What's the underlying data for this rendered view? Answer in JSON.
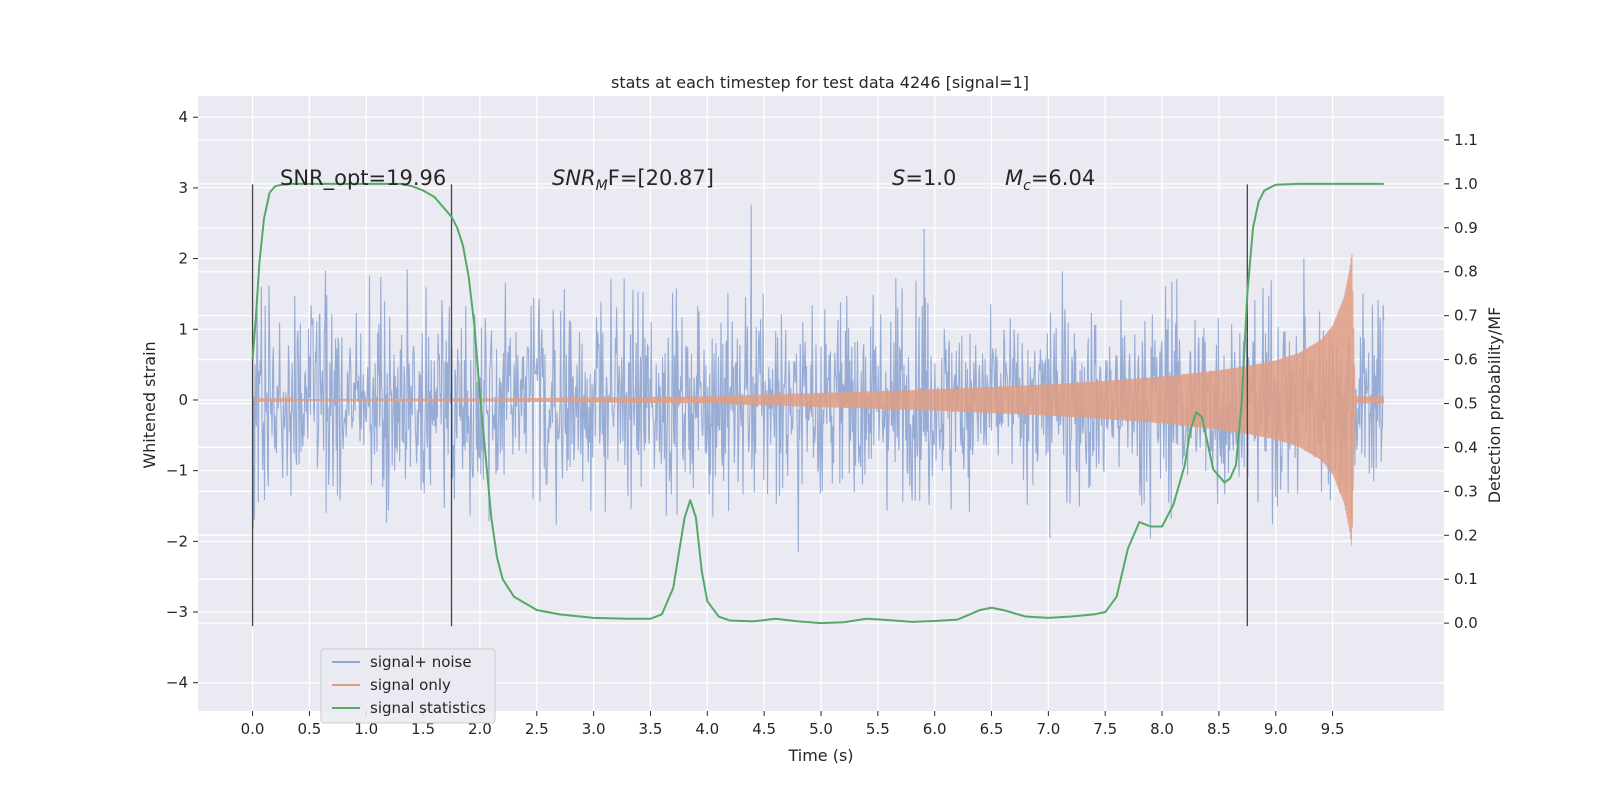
{
  "chart_data": {
    "type": "line",
    "title": "stats at each timestep for test data 4246 [signal=1]",
    "xlabel": "Time (s)",
    "ylabel_left": "Whitened strain",
    "ylabel_right": "Detection probability/MF",
    "xlim": [
      -0.48,
      10.48
    ],
    "ylim_left": [
      -4.4,
      4.3
    ],
    "ylim_right": [
      -0.2,
      1.2
    ],
    "x_ticks": [
      "0.0",
      "0.5",
      "1.0",
      "1.5",
      "2.0",
      "2.5",
      "3.0",
      "3.5",
      "4.0",
      "4.5",
      "5.0",
      "5.5",
      "6.0",
      "6.5",
      "7.0",
      "7.5",
      "8.0",
      "8.5",
      "9.0",
      "9.5"
    ],
    "y_ticks_left": [
      "−4",
      "−3",
      "−2",
      "−1",
      "0",
      "1",
      "2",
      "3",
      "4"
    ],
    "y_ticks_right": [
      "0.0",
      "0.1",
      "0.2",
      "0.3",
      "0.4",
      "0.5",
      "0.6",
      "0.7",
      "0.8",
      "0.9",
      "1.0",
      "1.1"
    ],
    "grid": true,
    "legend_position": "lower-left",
    "annotations": {
      "snr_opt": "SNR_opt=19.96",
      "snr_mf_sym": "SNR",
      "snr_mf_sub": "M",
      "snr_mf_rest": "F=[20.87]",
      "s_sym": "S",
      "s_rest": "=1.0",
      "mc_sym": "M",
      "mc_sub": "c",
      "mc_rest": "=6.04"
    },
    "vertical_lines_x": [
      0.0,
      1.75,
      8.75
    ],
    "series": [
      {
        "name": "signal+ noise",
        "color": "#8ea5d1",
        "description_range": "noise band approx -2.5 to 2.8 with peaks to ±4",
        "envelope_x": [
          0.0,
          9.95
        ],
        "envelope_y": [
          -2.5,
          2.8
        ]
      },
      {
        "name": "signal only",
        "color": "#df9d83",
        "envelope_x": [
          0.0,
          2.0,
          4.0,
          5.0,
          6.0,
          7.0,
          7.5,
          8.0,
          8.5,
          8.75,
          9.0,
          9.2,
          9.4,
          9.5,
          9.6,
          9.65,
          9.67,
          9.7,
          9.95
        ],
        "envelope_y": [
          0.01,
          0.02,
          0.05,
          0.1,
          0.15,
          0.22,
          0.27,
          0.33,
          0.42,
          0.48,
          0.56,
          0.66,
          0.85,
          1.05,
          1.45,
          1.85,
          2.1,
          0.05,
          0.05
        ]
      },
      {
        "name": "signal statistics",
        "color": "#55a868",
        "axis": "right",
        "x": [
          0.0,
          0.03,
          0.06,
          0.1,
          0.15,
          0.2,
          0.3,
          0.5,
          0.8,
          1.0,
          1.2,
          1.3,
          1.4,
          1.5,
          1.6,
          1.7,
          1.75,
          1.8,
          1.85,
          1.9,
          1.95,
          2.0,
          2.05,
          2.1,
          2.15,
          2.2,
          2.3,
          2.5,
          2.7,
          3.0,
          3.3,
          3.5,
          3.6,
          3.7,
          3.8,
          3.85,
          3.9,
          3.95,
          4.0,
          4.1,
          4.2,
          4.4,
          4.6,
          4.8,
          5.0,
          5.2,
          5.4,
          5.6,
          5.8,
          6.0,
          6.2,
          6.4,
          6.5,
          6.6,
          6.8,
          7.0,
          7.2,
          7.4,
          7.5,
          7.6,
          7.7,
          7.8,
          7.9,
          8.0,
          8.1,
          8.2,
          8.25,
          8.3,
          8.35,
          8.45,
          8.55,
          8.6,
          8.65,
          8.7,
          8.75,
          8.8,
          8.85,
          8.9,
          9.0,
          9.2,
          9.5,
          9.8,
          9.95
        ],
        "y": [
          0.6,
          0.7,
          0.82,
          0.92,
          0.98,
          0.995,
          1.0,
          1.0,
          1.0,
          1.0,
          1.0,
          1.0,
          0.995,
          0.985,
          0.97,
          0.94,
          0.925,
          0.9,
          0.86,
          0.79,
          0.68,
          0.52,
          0.38,
          0.24,
          0.15,
          0.1,
          0.06,
          0.03,
          0.02,
          0.012,
          0.01,
          0.01,
          0.02,
          0.08,
          0.24,
          0.28,
          0.24,
          0.12,
          0.05,
          0.015,
          0.006,
          0.004,
          0.01,
          0.004,
          0.0,
          0.002,
          0.01,
          0.007,
          0.003,
          0.005,
          0.008,
          0.03,
          0.035,
          0.03,
          0.015,
          0.012,
          0.015,
          0.02,
          0.025,
          0.06,
          0.17,
          0.23,
          0.22,
          0.22,
          0.27,
          0.36,
          0.44,
          0.48,
          0.47,
          0.35,
          0.32,
          0.33,
          0.36,
          0.5,
          0.75,
          0.9,
          0.96,
          0.985,
          0.998,
          1.0,
          1.0,
          1.0,
          1.0
        ]
      }
    ]
  }
}
